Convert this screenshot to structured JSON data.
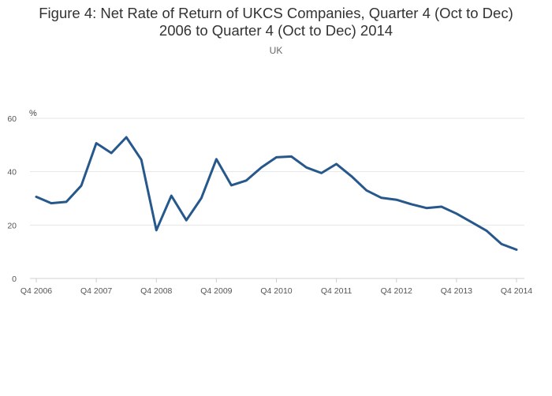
{
  "title_line1": "Figure 4: Net Rate of Return of UKCS Companies, Quarter 4 (Oct to Dec)",
  "title_line2": "2006 to Quarter 4 (Oct to Dec) 2014",
  "subtitle": "UK",
  "chart_data": {
    "type": "line",
    "title": "Figure 4: Net Rate of Return of UKCS Companies, Quarter 4 (Oct to Dec) 2006 to Quarter 4 (Oct to Dec) 2014",
    "subtitle": "UK",
    "ylabel": "%",
    "xlabel": "",
    "ylim": [
      0,
      60
    ],
    "yticks": [
      0,
      20,
      40,
      60
    ],
    "xtick_labels": [
      "Q4 2006",
      "Q4 2007",
      "Q4 2008",
      "Q4 2009",
      "Q4 2010",
      "Q4 2011",
      "Q4 2012",
      "Q4 2013",
      "Q4 2014"
    ],
    "x": [
      "Q4 2006",
      "Q1 2007",
      "Q2 2007",
      "Q3 2007",
      "Q4 2007",
      "Q1 2008",
      "Q2 2008",
      "Q3 2008",
      "Q4 2008",
      "Q1 2009",
      "Q2 2009",
      "Q3 2009",
      "Q4 2009",
      "Q1 2010",
      "Q2 2010",
      "Q3 2010",
      "Q4 2010",
      "Q1 2011",
      "Q2 2011",
      "Q3 2011",
      "Q4 2011",
      "Q1 2012",
      "Q2 2012",
      "Q3 2012",
      "Q4 2012",
      "Q1 2013",
      "Q2 2013",
      "Q3 2013",
      "Q4 2013",
      "Q1 2014",
      "Q2 2014",
      "Q3 2014",
      "Q4 2014"
    ],
    "series": [
      {
        "values": [
          30.6,
          28.2,
          28.7,
          34.8,
          50.7,
          47.0,
          52.9,
          44.5,
          18.1,
          31.0,
          21.8,
          30.1,
          44.7,
          34.9,
          36.7,
          41.6,
          45.4,
          45.7,
          41.6,
          39.5,
          42.9,
          38.3,
          33.0,
          30.2,
          29.5,
          27.8,
          26.4,
          26.9,
          24.3,
          21.1,
          17.9,
          12.9,
          10.8
        ],
        "color": "#27588c"
      }
    ],
    "grid": true
  }
}
